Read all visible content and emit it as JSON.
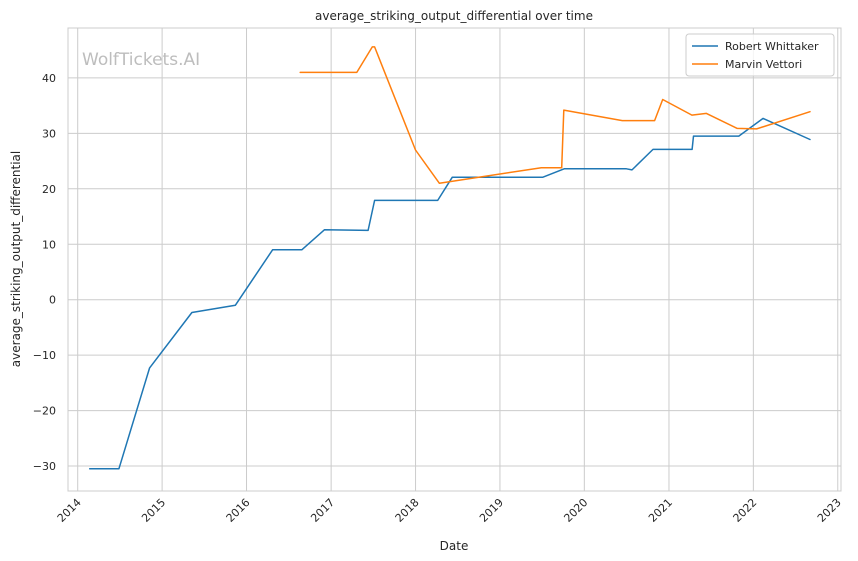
{
  "chart_data": {
    "type": "line",
    "title": "average_striking_output_differential over time",
    "xlabel": "Date",
    "ylabel": "average_striking_output_differential",
    "watermark": "WolfTickets.AI",
    "xlim": [
      "2013-11-20",
      "2023-01-15"
    ],
    "ylim": [
      -34.5,
      49
    ],
    "x_ticks": [
      "2014",
      "2015",
      "2016",
      "2017",
      "2018",
      "2019",
      "2020",
      "2021",
      "2022",
      "2023"
    ],
    "y_ticks": [
      -30,
      -20,
      -10,
      0,
      10,
      20,
      30,
      40
    ],
    "grid": true,
    "legend_position": "top-right",
    "series": [
      {
        "name": "Robert Whittaker",
        "color": "#1f77b4",
        "x": [
          "2014-02-22",
          "2014-06-28",
          "2014-11-08",
          "2015-05-10",
          "2015-11-14",
          "2016-04-23",
          "2016-08-27",
          "2016-12-03",
          "2017-06-10",
          "2017-07-08",
          "2018-04-07",
          "2018-06-09",
          "2019-07-06",
          "2019-10-06",
          "2020-07-01",
          "2020-07-25",
          "2020-10-24",
          "2021-04-11",
          "2021-04-17",
          "2021-10-30",
          "2022-02-12",
          "2022-09-03"
        ],
        "y": [
          -30.5,
          -30.5,
          -12.3,
          -2.3,
          -1.0,
          9.0,
          9.0,
          12.6,
          12.5,
          17.9,
          17.9,
          22.1,
          22.1,
          23.6,
          23.6,
          23.4,
          27.1,
          27.1,
          29.5,
          29.5,
          32.7,
          28.9
        ]
      },
      {
        "name": "Marvin Vettori",
        "color": "#ff7f0e",
        "x": [
          "2016-08-20",
          "2017-04-22",
          "2017-06-28",
          "2017-07-08",
          "2018-01-01",
          "2018-04-14",
          "2019-06-29",
          "2019-09-25",
          "2019-10-04",
          "2020-06-13",
          "2020-10-31",
          "2020-12-05",
          "2021-04-10",
          "2021-06-12",
          "2021-10-23",
          "2022-01-15",
          "2022-09-03"
        ],
        "y": [
          41.0,
          41.0,
          45.6,
          45.6,
          27.0,
          21.0,
          23.8,
          23.8,
          34.2,
          32.3,
          32.3,
          36.1,
          33.3,
          33.6,
          30.9,
          30.8,
          33.9
        ]
      }
    ]
  }
}
